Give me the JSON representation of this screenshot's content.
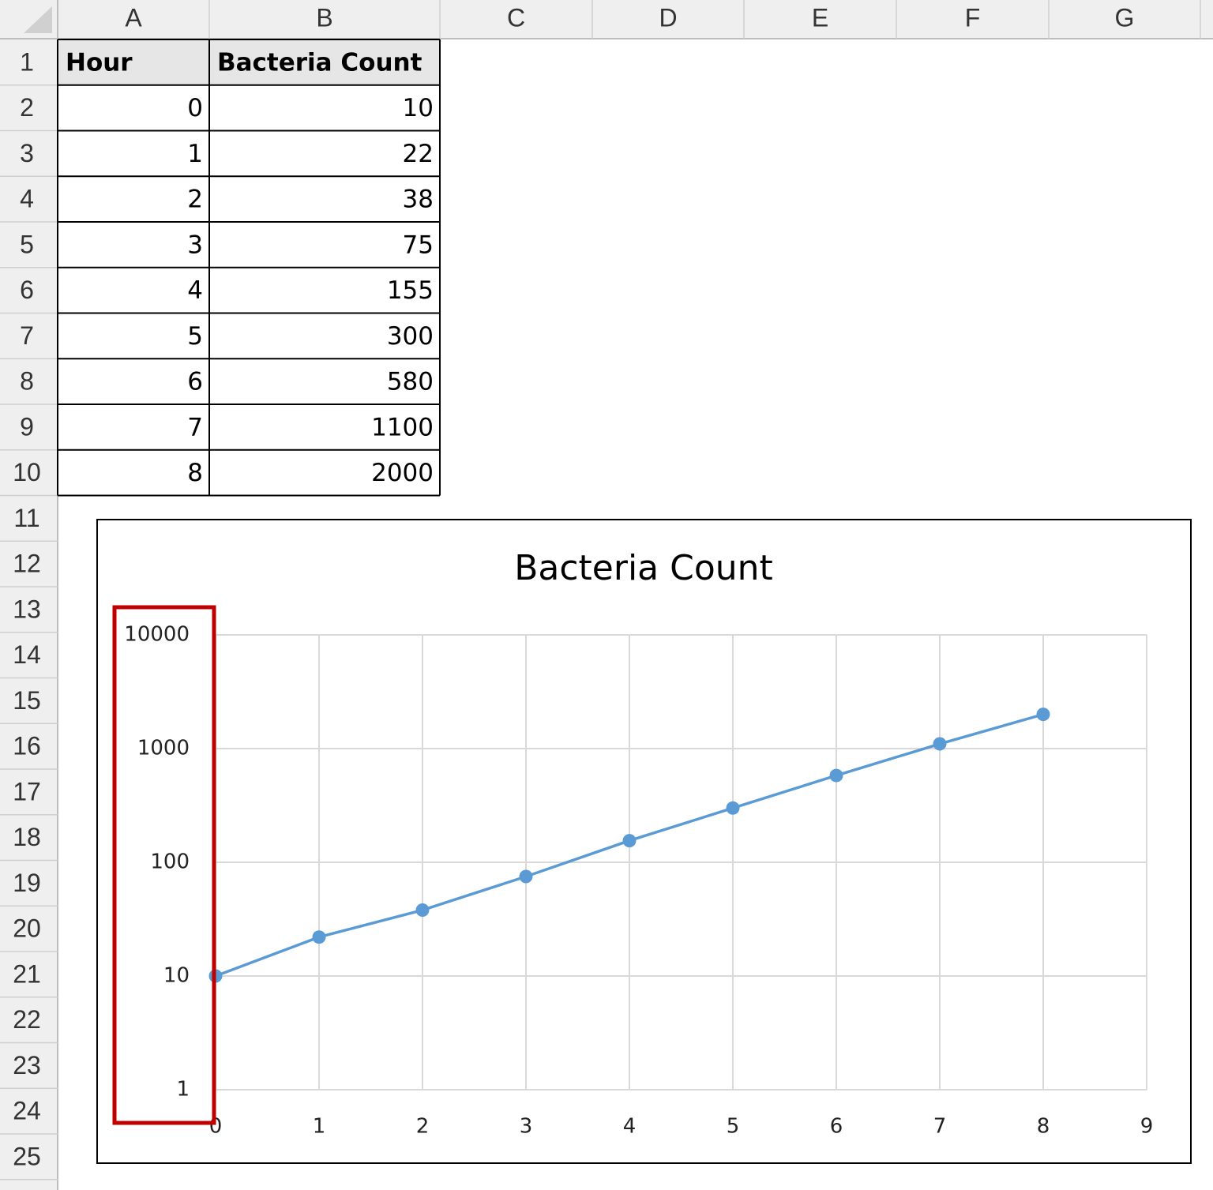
{
  "columns": [
    "A",
    "B",
    "C",
    "D",
    "E",
    "F",
    "G"
  ],
  "rows": [
    1,
    2,
    3,
    4,
    5,
    6,
    7,
    8,
    9,
    10,
    11,
    12,
    13,
    14,
    15,
    16,
    17,
    18,
    19,
    20,
    21,
    22,
    23,
    24,
    25
  ],
  "table": {
    "header": [
      "Hour",
      "Bacteria Count"
    ]
  },
  "chart_data": {
    "type": "line",
    "title": "Bacteria Count",
    "x": [
      0,
      1,
      2,
      3,
      4,
      5,
      6,
      7,
      8
    ],
    "values": [
      10,
      22,
      38,
      75,
      155,
      300,
      580,
      1100,
      2000
    ],
    "color": "#5b9bd5",
    "xlim": [
      0,
      9
    ],
    "xticks": [
      0,
      1,
      2,
      3,
      4,
      5,
      6,
      7,
      8,
      9
    ],
    "ylim": [
      1,
      10000
    ],
    "yticks": [
      1,
      10,
      100,
      1000,
      10000
    ],
    "log_y": true,
    "grid": true
  }
}
